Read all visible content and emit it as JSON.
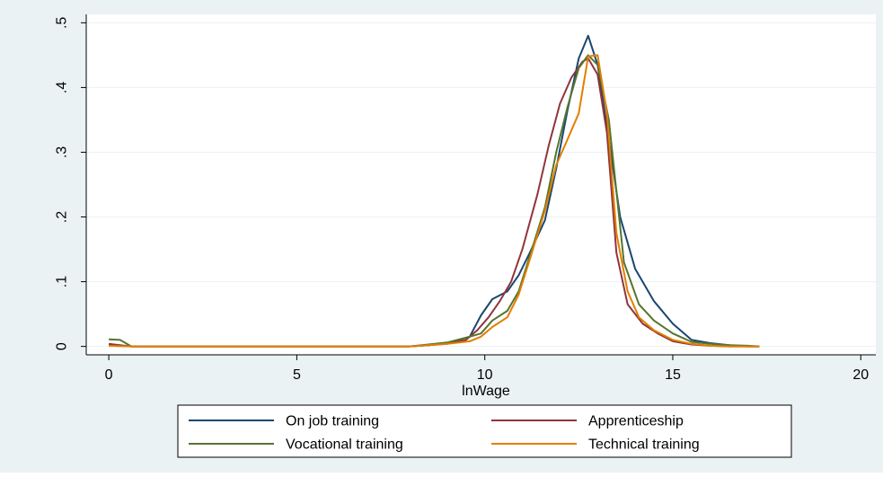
{
  "chart_data": {
    "type": "line",
    "title": "",
    "xlabel": "lnWage",
    "ylabel": "",
    "xlim": [
      -0.6,
      20.4
    ],
    "ylim": [
      -0.013,
      0.513
    ],
    "xticks": [
      0,
      5,
      10,
      15,
      20
    ],
    "xtick_labels": [
      "0",
      "5",
      "10",
      "15",
      "20"
    ],
    "yticks": [
      0,
      0.1,
      0.2,
      0.3,
      0.4,
      0.5
    ],
    "ytick_labels": [
      "0",
      ".1",
      ".2",
      ".3",
      ".4",
      ".5"
    ],
    "grid": "horizontal",
    "legend_placement": "bottom",
    "background_colors": {
      "outer": "#eaf2f3",
      "plot": "#ffffff",
      "grid": "#eaf2f3"
    },
    "series": [
      {
        "name": "On job training",
        "color": "#1a476f",
        "x": [
          0,
          0.6,
          1,
          2,
          3,
          4,
          5,
          6,
          7,
          8,
          8.5,
          9,
          9.6,
          9.9,
          10.2,
          10.6,
          10.9,
          11.2,
          11.6,
          11.9,
          12.2,
          12.5,
          12.75,
          13,
          13.3,
          13.6,
          14,
          14.5,
          15,
          15.5,
          16,
          16.5,
          17,
          17.3
        ],
        "y": [
          0.002,
          0,
          0,
          0,
          0,
          0,
          0,
          0,
          0,
          0,
          0.002,
          0.005,
          0.015,
          0.048,
          0.073,
          0.085,
          0.11,
          0.145,
          0.195,
          0.275,
          0.365,
          0.445,
          0.48,
          0.435,
          0.32,
          0.2,
          0.12,
          0.07,
          0.035,
          0.01,
          0.005,
          0.002,
          0,
          0
        ]
      },
      {
        "name": "Apprenticeship",
        "color": "#90353b",
        "x": [
          0,
          0.6,
          1,
          2,
          3,
          4,
          5,
          6,
          7,
          8,
          8.5,
          9,
          9.5,
          9.8,
          10.1,
          10.4,
          10.7,
          11,
          11.4,
          11.7,
          12,
          12.3,
          12.6,
          12.75,
          13,
          13.25,
          13.5,
          13.8,
          14.2,
          14.6,
          15,
          15.5,
          16,
          16.5,
          17,
          17.3
        ],
        "y": [
          0.004,
          0,
          0,
          0,
          0,
          0,
          0,
          0,
          0,
          0,
          0.002,
          0.004,
          0.01,
          0.025,
          0.045,
          0.07,
          0.1,
          0.15,
          0.235,
          0.31,
          0.375,
          0.415,
          0.44,
          0.445,
          0.42,
          0.33,
          0.145,
          0.065,
          0.035,
          0.02,
          0.008,
          0.003,
          0.001,
          0,
          0,
          0
        ]
      },
      {
        "name": "Vocational training",
        "color": "#55752f",
        "x": [
          0,
          0.3,
          0.6,
          1,
          2,
          3,
          4,
          5,
          6,
          7,
          8,
          8.5,
          9,
          9.6,
          9.9,
          10.2,
          10.6,
          10.9,
          11.2,
          11.6,
          11.9,
          12.2,
          12.5,
          12.75,
          13,
          13.3,
          13.7,
          14.1,
          14.5,
          15,
          15.5,
          16,
          16.5,
          17,
          17.3
        ],
        "y": [
          0.011,
          0.01,
          0,
          0,
          0,
          0,
          0,
          0,
          0,
          0,
          0,
          0.003,
          0.006,
          0.015,
          0.02,
          0.04,
          0.055,
          0.085,
          0.14,
          0.215,
          0.3,
          0.37,
          0.43,
          0.45,
          0.435,
          0.35,
          0.13,
          0.065,
          0.04,
          0.02,
          0.007,
          0.004,
          0.002,
          0.001,
          0
        ]
      },
      {
        "name": "Technical training",
        "color": "#e37e00",
        "x": [
          0,
          0.6,
          1,
          2,
          3,
          4,
          5,
          6,
          7,
          8,
          8.5,
          9,
          9.6,
          9.9,
          10.2,
          10.6,
          10.9,
          11.2,
          11.6,
          11.9,
          12.2,
          12.5,
          12.75,
          13,
          13.25,
          13.5,
          13.8,
          14.1,
          14.5,
          15,
          15.5,
          16,
          16.5,
          17,
          17.3
        ],
        "y": [
          0.001,
          0,
          0,
          0,
          0,
          0,
          0,
          0,
          0,
          0,
          0.002,
          0.004,
          0.008,
          0.015,
          0.03,
          0.045,
          0.08,
          0.135,
          0.21,
          0.28,
          0.32,
          0.36,
          0.448,
          0.45,
          0.36,
          0.175,
          0.085,
          0.045,
          0.025,
          0.01,
          0.004,
          0.001,
          0,
          0,
          0
        ]
      }
    ]
  }
}
